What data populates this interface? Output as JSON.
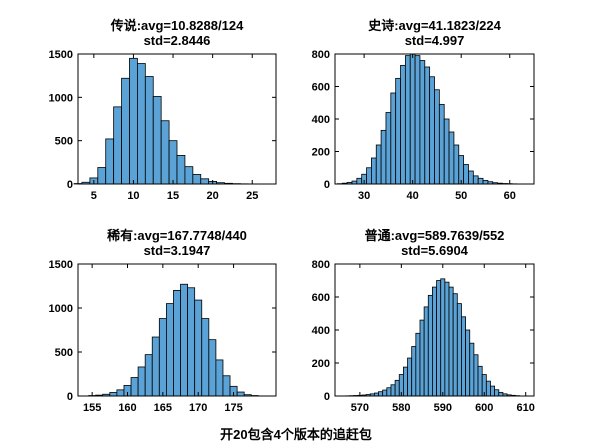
{
  "figure": {
    "suptitle": "开20包含4个版本的追赶包"
  },
  "chart_data": [
    {
      "type": "bar",
      "title": "传说:avg=10.8288/124",
      "subtitle": "std=2.8446",
      "xlim": [
        3,
        28
      ],
      "ylim": [
        0,
        1500
      ],
      "xticks": [
        "5",
        "10",
        "15",
        "20",
        "25"
      ],
      "yticks": [
        "0",
        "500",
        "1000",
        "1500"
      ],
      "bin_width": 1,
      "bins": [
        3,
        4,
        5,
        6,
        7,
        8,
        9,
        10,
        11,
        12,
        13,
        14,
        15,
        16,
        17,
        18,
        19,
        20,
        21,
        22,
        23,
        24,
        25,
        26,
        27
      ],
      "values": [
        5,
        20,
        70,
        190,
        520,
        890,
        1220,
        1450,
        1390,
        1240,
        1010,
        730,
        500,
        330,
        200,
        110,
        60,
        30,
        15,
        8,
        4,
        2,
        1,
        1,
        1
      ],
      "bar_color": "#5ba3d6",
      "grid": false
    },
    {
      "type": "bar",
      "title": "史诗:avg=41.1823/224",
      "subtitle": "std=4.997",
      "xlim": [
        24,
        65
      ],
      "ylim": [
        0,
        800
      ],
      "xticks": [
        "30",
        "40",
        "50",
        "60"
      ],
      "yticks": [
        "0",
        "200",
        "400",
        "600",
        "800"
      ],
      "bin_width": 1,
      "bins": [
        25,
        26,
        27,
        28,
        29,
        30,
        31,
        32,
        33,
        34,
        35,
        36,
        37,
        38,
        39,
        40,
        41,
        42,
        43,
        44,
        45,
        46,
        47,
        48,
        49,
        50,
        51,
        52,
        53,
        54,
        55,
        56,
        57,
        58,
        59,
        60,
        61
      ],
      "values": [
        2,
        5,
        10,
        18,
        35,
        60,
        100,
        160,
        240,
        330,
        440,
        560,
        650,
        730,
        790,
        800,
        790,
        760,
        720,
        660,
        580,
        490,
        400,
        320,
        240,
        175,
        120,
        80,
        50,
        35,
        22,
        14,
        8,
        5,
        3,
        2,
        1
      ],
      "bar_color": "#5ba3d6",
      "grid": false
    },
    {
      "type": "bar",
      "title": "稀有:avg=167.7748/440",
      "subtitle": "std=3.1947",
      "xlim": [
        153,
        181
      ],
      "ylim": [
        0,
        1500
      ],
      "xticks": [
        "155",
        "160",
        "165",
        "170",
        "175"
      ],
      "yticks": [
        "0",
        "500",
        "1000",
        "1500"
      ],
      "bin_width": 1,
      "bins": [
        155,
        156,
        157,
        158,
        159,
        160,
        161,
        162,
        163,
        164,
        165,
        166,
        167,
        168,
        169,
        170,
        171,
        172,
        173,
        174,
        175,
        176,
        177,
        178
      ],
      "values": [
        5,
        10,
        20,
        40,
        70,
        120,
        210,
        330,
        470,
        670,
        880,
        1050,
        1200,
        1270,
        1230,
        1090,
        880,
        640,
        410,
        230,
        110,
        45,
        15,
        5
      ],
      "bar_color": "#5ba3d6",
      "grid": false
    },
    {
      "type": "bar",
      "title": "普通:avg=589.7639/552",
      "subtitle": "std=5.6904",
      "xlim": [
        564,
        612
      ],
      "ylim": [
        0,
        800
      ],
      "xticks": [
        "570",
        "580",
        "590",
        "600",
        "610"
      ],
      "yticks": [
        "0",
        "200",
        "400",
        "600",
        "800"
      ],
      "bin_width": 1,
      "bins": [
        567,
        568,
        569,
        570,
        571,
        572,
        573,
        574,
        575,
        576,
        577,
        578,
        579,
        580,
        581,
        582,
        583,
        584,
        585,
        586,
        587,
        588,
        589,
        590,
        591,
        592,
        593,
        594,
        595,
        596,
        597,
        598,
        599,
        600,
        601,
        602,
        603,
        604,
        605,
        606,
        607,
        608
      ],
      "values": [
        1,
        2,
        3,
        4,
        6,
        9,
        13,
        18,
        26,
        36,
        50,
        68,
        95,
        130,
        175,
        230,
        300,
        380,
        460,
        540,
        610,
        660,
        700,
        710,
        690,
        660,
        620,
        560,
        480,
        400,
        320,
        250,
        180,
        130,
        90,
        60,
        38,
        22,
        13,
        7,
        4,
        2
      ],
      "bar_color": "#5ba3d6",
      "grid": false
    }
  ]
}
